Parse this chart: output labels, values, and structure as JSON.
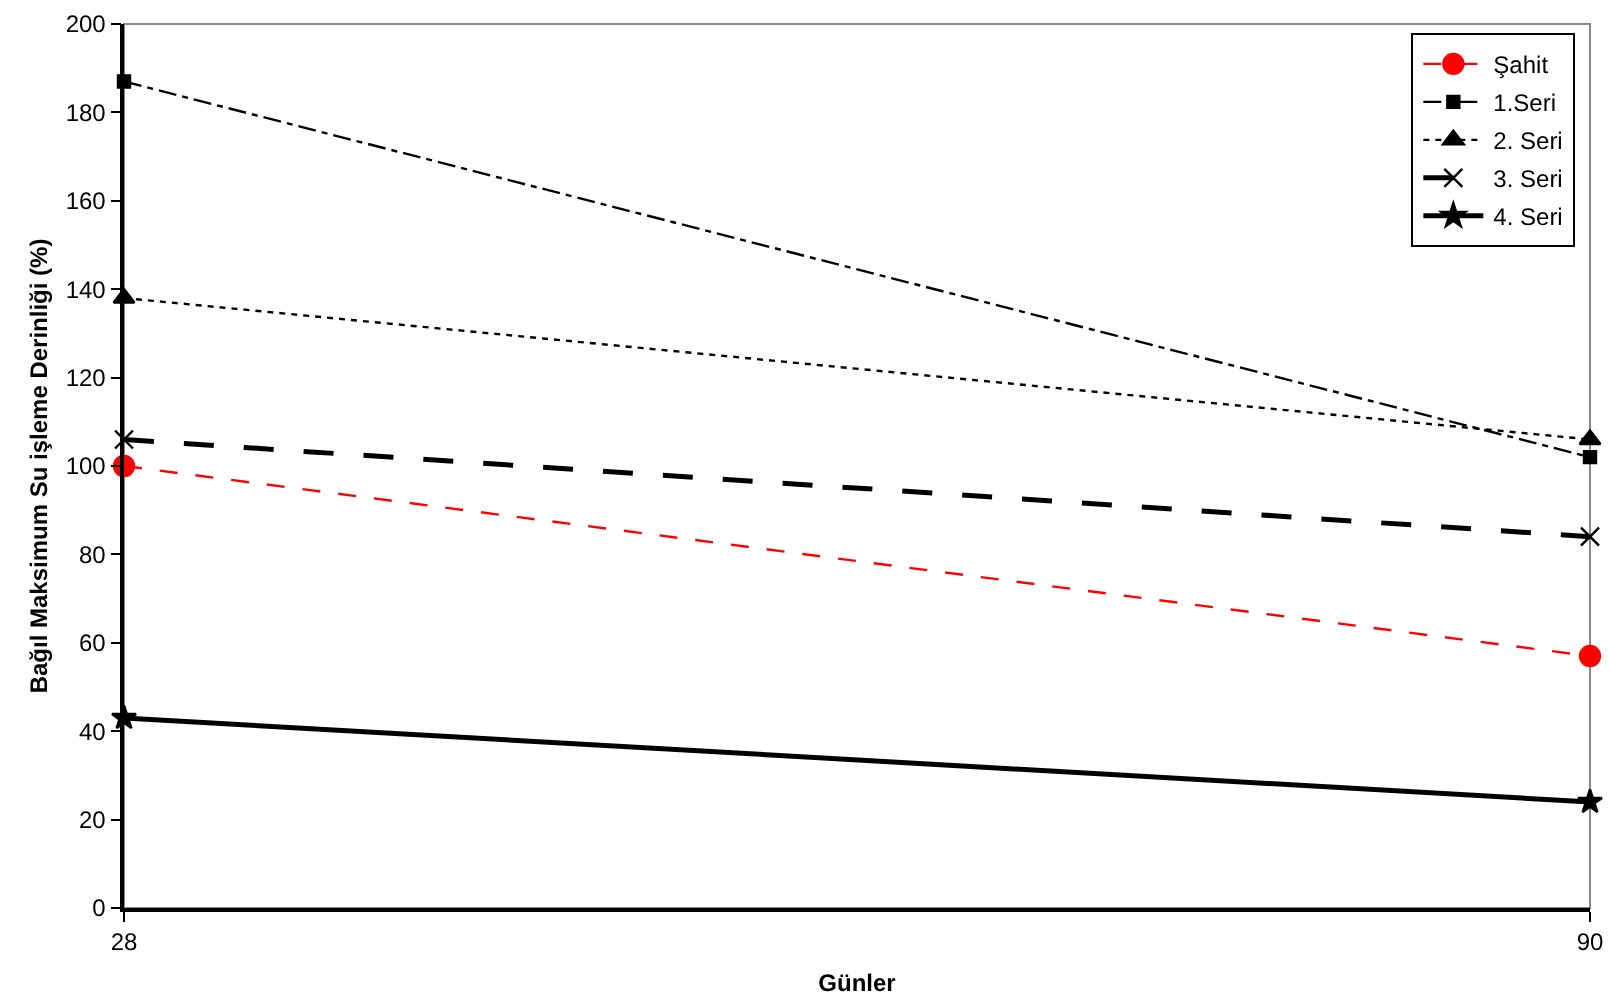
{
  "chart_data": {
    "type": "line",
    "xlabel": "Günler",
    "ylabel": "Bağıl Maksimum Su işleme Derinliği (%)",
    "x": [
      28,
      90
    ],
    "xlim": [
      28,
      90
    ],
    "xticks": [
      28,
      90
    ],
    "ylim": [
      0,
      200
    ],
    "yticks": [
      0,
      20,
      40,
      60,
      80,
      100,
      120,
      140,
      160,
      180,
      200
    ],
    "grid": false,
    "legend": "top right",
    "series": [
      {
        "name": "Şahit",
        "color": "#ff0000",
        "values": [
          100,
          57
        ],
        "marker": "circle",
        "line_style": "dashed"
      },
      {
        "name": "1.Seri",
        "color": "#000000",
        "values": [
          187,
          102
        ],
        "marker": "square",
        "line_style": "dashdot"
      },
      {
        "name": "2. Seri",
        "color": "#000000",
        "values": [
          138,
          106
        ],
        "marker": "triangle",
        "line_style": "dotted"
      },
      {
        "name": "3. Seri",
        "color": "#000000",
        "values": [
          106,
          84
        ],
        "marker": "cross",
        "line_style": "longdash"
      },
      {
        "name": "4. Seri",
        "color": "#000000",
        "values": [
          43,
          24
        ],
        "marker": "star",
        "line_style": "solid"
      }
    ]
  }
}
